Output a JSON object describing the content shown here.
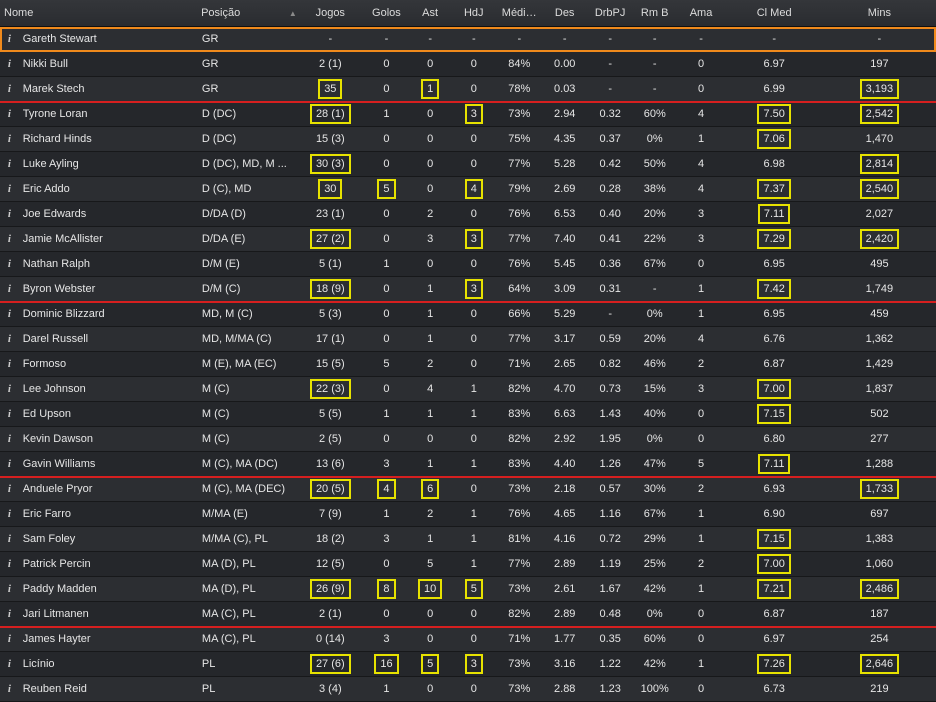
{
  "columns": {
    "name": "Nome",
    "position": "Posição",
    "sort_indicator": "▲",
    "games": "Jogos",
    "goals": "Golos",
    "assists": "Ast",
    "pom": "HdJ",
    "avg": "Médi…",
    "des": "Des",
    "drb": "DrbPJ",
    "rmb": "Rm B",
    "yel": "Ama",
    "avg_rating": "Cl Med",
    "mins": "Mins"
  },
  "info_glyph": "i",
  "players": [
    {
      "name": "Gareth Stewart",
      "pos": "GR",
      "games": "-",
      "goals": "-",
      "ast": "-",
      "hdj": "-",
      "avg": "-",
      "des": "-",
      "drb": "-",
      "rmb": "-",
      "ama": "-",
      "cl": "-",
      "mins": "-"
    },
    {
      "name": "Nikki Bull",
      "pos": "GR",
      "games": "2 (1)",
      "goals": "0",
      "ast": "0",
      "hdj": "0",
      "avg": "84%",
      "des": "0.00",
      "drb": "-",
      "rmb": "-",
      "ama": "0",
      "cl": "6.97",
      "mins": "197"
    },
    {
      "name": "Marek Stech",
      "pos": "GR",
      "games": "35",
      "goals": "0",
      "ast": "1",
      "hdj": "0",
      "avg": "78%",
      "des": "0.03",
      "drb": "-",
      "rmb": "-",
      "ama": "0",
      "cl": "6.99",
      "mins": "3,193"
    },
    {
      "name": "Tyrone Loran",
      "pos": "D (DC)",
      "games": "28 (1)",
      "goals": "1",
      "ast": "0",
      "hdj": "3",
      "avg": "73%",
      "des": "2.94",
      "drb": "0.32",
      "rmb": "60%",
      "ama": "4",
      "cl": "7.50",
      "mins": "2,542"
    },
    {
      "name": "Richard Hinds",
      "pos": "D (DC)",
      "games": "15 (3)",
      "goals": "0",
      "ast": "0",
      "hdj": "0",
      "avg": "75%",
      "des": "4.35",
      "drb": "0.37",
      "rmb": "0%",
      "ama": "1",
      "cl": "7.06",
      "mins": "1,470"
    },
    {
      "name": "Luke Ayling",
      "pos": "D (DC), MD, M ...",
      "games": "30 (3)",
      "goals": "0",
      "ast": "0",
      "hdj": "0",
      "avg": "77%",
      "des": "5.28",
      "drb": "0.42",
      "rmb": "50%",
      "ama": "4",
      "cl": "6.98",
      "mins": "2,814"
    },
    {
      "name": "Eric Addo",
      "pos": "D (C), MD",
      "games": "30",
      "goals": "5",
      "ast": "0",
      "hdj": "4",
      "avg": "79%",
      "des": "2.69",
      "drb": "0.28",
      "rmb": "38%",
      "ama": "4",
      "cl": "7.37",
      "mins": "2,540"
    },
    {
      "name": "Joe Edwards",
      "pos": "D/DA (D)",
      "games": "23 (1)",
      "goals": "0",
      "ast": "2",
      "hdj": "0",
      "avg": "76%",
      "des": "6.53",
      "drb": "0.40",
      "rmb": "20%",
      "ama": "3",
      "cl": "7.11",
      "mins": "2,027"
    },
    {
      "name": "Jamie McAllister",
      "pos": "D/DA (E)",
      "games": "27 (2)",
      "goals": "0",
      "ast": "3",
      "hdj": "3",
      "avg": "77%",
      "des": "7.40",
      "drb": "0.41",
      "rmb": "22%",
      "ama": "3",
      "cl": "7.29",
      "mins": "2,420"
    },
    {
      "name": "Nathan Ralph",
      "pos": "D/M (E)",
      "games": "5 (1)",
      "goals": "1",
      "ast": "0",
      "hdj": "0",
      "avg": "76%",
      "des": "5.45",
      "drb": "0.36",
      "rmb": "67%",
      "ama": "0",
      "cl": "6.95",
      "mins": "495"
    },
    {
      "name": "Byron Webster",
      "pos": "D/M (C)",
      "games": "18 (9)",
      "goals": "0",
      "ast": "1",
      "hdj": "3",
      "avg": "64%",
      "des": "3.09",
      "drb": "0.31",
      "rmb": "-",
      "ama": "1",
      "cl": "7.42",
      "mins": "1,749"
    },
    {
      "name": "Dominic Blizzard",
      "pos": "MD, M (C)",
      "games": "5 (3)",
      "goals": "0",
      "ast": "1",
      "hdj": "0",
      "avg": "66%",
      "des": "5.29",
      "drb": "-",
      "rmb": "0%",
      "ama": "1",
      "cl": "6.95",
      "mins": "459"
    },
    {
      "name": "Darel Russell",
      "pos": "MD, M/MA (C)",
      "games": "17 (1)",
      "goals": "0",
      "ast": "1",
      "hdj": "0",
      "avg": "77%",
      "des": "3.17",
      "drb": "0.59",
      "rmb": "20%",
      "ama": "4",
      "cl": "6.76",
      "mins": "1,362"
    },
    {
      "name": "Formoso",
      "pos": "M (E), MA (EC)",
      "games": "15 (5)",
      "goals": "5",
      "ast": "2",
      "hdj": "0",
      "avg": "71%",
      "des": "2.65",
      "drb": "0.82",
      "rmb": "46%",
      "ama": "2",
      "cl": "6.87",
      "mins": "1,429"
    },
    {
      "name": "Lee Johnson",
      "pos": "M (C)",
      "games": "22 (3)",
      "goals": "0",
      "ast": "4",
      "hdj": "1",
      "avg": "82%",
      "des": "4.70",
      "drb": "0.73",
      "rmb": "15%",
      "ama": "3",
      "cl": "7.00",
      "mins": "1,837"
    },
    {
      "name": "Ed Upson",
      "pos": "M (C)",
      "games": "5 (5)",
      "goals": "1",
      "ast": "1",
      "hdj": "1",
      "avg": "83%",
      "des": "6.63",
      "drb": "1.43",
      "rmb": "40%",
      "ama": "0",
      "cl": "7.15",
      "mins": "502"
    },
    {
      "name": "Kevin Dawson",
      "pos": "M (C)",
      "games": "2 (5)",
      "goals": "0",
      "ast": "0",
      "hdj": "0",
      "avg": "82%",
      "des": "2.92",
      "drb": "1.95",
      "rmb": "0%",
      "ama": "0",
      "cl": "6.80",
      "mins": "277"
    },
    {
      "name": "Gavin Williams",
      "pos": "M (C), MA (DC)",
      "games": "13 (6)",
      "goals": "3",
      "ast": "1",
      "hdj": "1",
      "avg": "83%",
      "des": "4.40",
      "drb": "1.26",
      "rmb": "47%",
      "ama": "5",
      "cl": "7.11",
      "mins": "1,288"
    },
    {
      "name": "Anduele Pryor",
      "pos": "M (C), MA (DEC)",
      "games": "20 (5)",
      "goals": "4",
      "ast": "6",
      "hdj": "0",
      "avg": "73%",
      "des": "2.18",
      "drb": "0.57",
      "rmb": "30%",
      "ama": "2",
      "cl": "6.93",
      "mins": "1,733"
    },
    {
      "name": "Eric Farro",
      "pos": "M/MA (E)",
      "games": "7 (9)",
      "goals": "1",
      "ast": "2",
      "hdj": "1",
      "avg": "76%",
      "des": "4.65",
      "drb": "1.16",
      "rmb": "67%",
      "ama": "1",
      "cl": "6.90",
      "mins": "697"
    },
    {
      "name": "Sam Foley",
      "pos": "M/MA (C), PL",
      "games": "18 (2)",
      "goals": "3",
      "ast": "1",
      "hdj": "1",
      "avg": "81%",
      "des": "4.16",
      "drb": "0.72",
      "rmb": "29%",
      "ama": "1",
      "cl": "7.15",
      "mins": "1,383"
    },
    {
      "name": "Patrick Percin",
      "pos": "MA (D), PL",
      "games": "12 (5)",
      "goals": "0",
      "ast": "5",
      "hdj": "1",
      "avg": "77%",
      "des": "2.89",
      "drb": "1.19",
      "rmb": "25%",
      "ama": "2",
      "cl": "7.00",
      "mins": "1,060"
    },
    {
      "name": "Paddy Madden",
      "pos": "MA (D), PL",
      "games": "26 (9)",
      "goals": "8",
      "ast": "10",
      "hdj": "5",
      "avg": "73%",
      "des": "2.61",
      "drb": "1.67",
      "rmb": "42%",
      "ama": "1",
      "cl": "7.21",
      "mins": "2,486"
    },
    {
      "name": "Jari Litmanen",
      "pos": "MA (C), PL",
      "games": "2 (1)",
      "goals": "0",
      "ast": "0",
      "hdj": "0",
      "avg": "82%",
      "des": "2.89",
      "drb": "0.48",
      "rmb": "0%",
      "ama": "0",
      "cl": "6.87",
      "mins": "187"
    },
    {
      "name": "James Hayter",
      "pos": "MA (C), PL",
      "games": "0 (14)",
      "goals": "3",
      "ast": "0",
      "hdj": "0",
      "avg": "71%",
      "des": "1.77",
      "drb": "0.35",
      "rmb": "60%",
      "ama": "0",
      "cl": "6.97",
      "mins": "254"
    },
    {
      "name": "Licínio",
      "pos": "PL",
      "games": "27 (6)",
      "goals": "16",
      "ast": "5",
      "hdj": "3",
      "avg": "73%",
      "des": "3.16",
      "drb": "1.22",
      "rmb": "42%",
      "ama": "1",
      "cl": "7.26",
      "mins": "2,646"
    },
    {
      "name": "Reuben Reid",
      "pos": "PL",
      "games": "3 (4)",
      "goals": "1",
      "ast": "0",
      "hdj": "0",
      "avg": "73%",
      "des": "2.88",
      "drb": "1.23",
      "rmb": "100%",
      "ama": "0",
      "cl": "6.73",
      "mins": "219"
    }
  ]
}
